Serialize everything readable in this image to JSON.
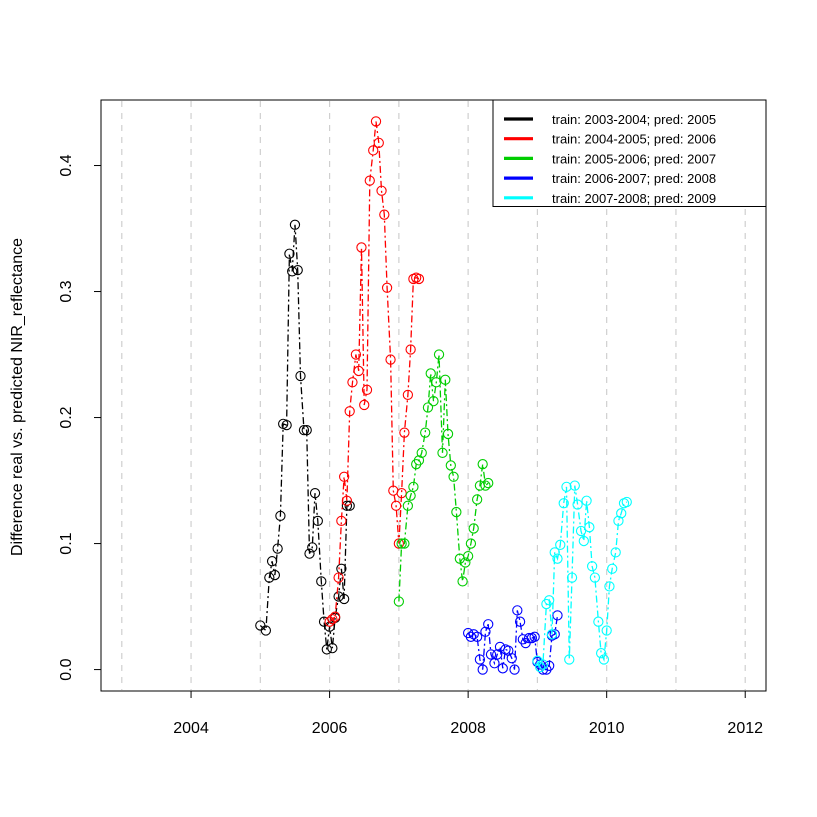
{
  "chart_data": {
    "type": "scatter",
    "title": "",
    "xlabel": "",
    "ylabel": "Difference real vs. predicted NIR_reflectance",
    "xlim": [
      2002.7,
      2012.3
    ],
    "ylim": [
      -0.017,
      0.452
    ],
    "x_ticks": [
      2004,
      2006,
      2008,
      2010,
      2012
    ],
    "y_ticks": [
      0.0,
      0.1,
      0.2,
      0.3,
      0.4
    ],
    "x_tick_labels": [
      "2004",
      "2006",
      "2008",
      "2010",
      "2012"
    ],
    "y_tick_labels": [
      "0.0",
      "0.1",
      "0.2",
      "0.3",
      "0.4"
    ],
    "vertical_gridlines_dashed": [
      2003,
      2004,
      2005,
      2006,
      2007,
      2008,
      2009,
      2010,
      2011,
      2012
    ],
    "legend_position": "top-right",
    "series": [
      {
        "name": "train: 2003-2004; pred: 2005",
        "color": "#000000",
        "x": [
          2005.0,
          2005.08,
          2005.13,
          2005.17,
          2005.21,
          2005.25,
          2005.29,
          2005.33,
          2005.38,
          2005.42,
          2005.46,
          2005.5,
          2005.54,
          2005.58,
          2005.63,
          2005.67,
          2005.71,
          2005.75,
          2005.79,
          2005.83,
          2005.88,
          2005.92,
          2005.96,
          2006.0,
          2006.04,
          2006.08,
          2006.13,
          2006.17,
          2006.21,
          2006.25,
          2006.29
        ],
        "y": [
          0.035,
          0.031,
          0.073,
          0.086,
          0.075,
          0.096,
          0.122,
          0.195,
          0.194,
          0.33,
          0.316,
          0.353,
          0.317,
          0.233,
          0.19,
          0.19,
          0.092,
          0.097,
          0.14,
          0.118,
          0.07,
          0.038,
          0.016,
          0.034,
          0.017,
          0.041,
          0.058,
          0.08,
          0.056,
          0.13,
          0.13
        ]
      },
      {
        "name": "train: 2004-2005; pred: 2006",
        "color": "#ff0000",
        "x": [
          2006.0,
          2006.04,
          2006.08,
          2006.13,
          2006.17,
          2006.21,
          2006.25,
          2006.29,
          2006.33,
          2006.38,
          2006.42,
          2006.46,
          2006.5,
          2006.54,
          2006.58,
          2006.63,
          2006.67,
          2006.71,
          2006.75,
          2006.79,
          2006.83,
          2006.88,
          2006.92,
          2006.96,
          2007.0,
          2007.04,
          2007.08,
          2007.13,
          2007.17,
          2007.21,
          2007.25,
          2007.29
        ],
        "y": [
          0.038,
          0.04,
          0.042,
          0.073,
          0.118,
          0.153,
          0.134,
          0.205,
          0.228,
          0.25,
          0.237,
          0.335,
          0.21,
          0.222,
          0.388,
          0.412,
          0.435,
          0.418,
          0.38,
          0.361,
          0.303,
          0.246,
          0.142,
          0.13,
          0.1,
          0.14,
          0.188,
          0.218,
          0.254,
          0.31,
          0.311,
          0.31
        ]
      },
      {
        "name": "train: 2005-2006; pred: 2007",
        "color": "#00cd00",
        "x": [
          2007.0,
          2007.04,
          2007.08,
          2007.13,
          2007.17,
          2007.21,
          2007.25,
          2007.29,
          2007.33,
          2007.38,
          2007.42,
          2007.46,
          2007.5,
          2007.54,
          2007.58,
          2007.63,
          2007.67,
          2007.71,
          2007.75,
          2007.79,
          2007.83,
          2007.88,
          2007.92,
          2007.96,
          2008.0,
          2008.04,
          2008.08,
          2008.13,
          2008.17,
          2008.21,
          2008.25,
          2008.29
        ],
        "y": [
          0.054,
          0.1,
          0.1,
          0.13,
          0.138,
          0.145,
          0.163,
          0.166,
          0.172,
          0.188,
          0.208,
          0.235,
          0.213,
          0.228,
          0.25,
          0.172,
          0.23,
          0.187,
          0.162,
          0.153,
          0.125,
          0.088,
          0.07,
          0.085,
          0.09,
          0.1,
          0.112,
          0.135,
          0.146,
          0.163,
          0.146,
          0.148
        ]
      },
      {
        "name": "train: 2006-2007; pred: 2008",
        "color": "#0000ff",
        "x": [
          2008.0,
          2008.04,
          2008.08,
          2008.13,
          2008.17,
          2008.21,
          2008.25,
          2008.29,
          2008.33,
          2008.38,
          2008.42,
          2008.46,
          2008.5,
          2008.54,
          2008.58,
          2008.63,
          2008.67,
          2008.71,
          2008.75,
          2008.79,
          2008.83,
          2008.88,
          2008.92,
          2008.96,
          2009.0,
          2009.04,
          2009.08,
          2009.13,
          2009.17,
          2009.21,
          2009.25,
          2009.29
        ],
        "y": [
          0.029,
          0.026,
          0.028,
          0.026,
          0.008,
          0.0,
          0.03,
          0.036,
          0.012,
          0.005,
          0.012,
          0.018,
          0.001,
          0.016,
          0.015,
          0.009,
          0.0,
          0.047,
          0.038,
          0.024,
          0.021,
          0.025,
          0.025,
          0.026,
          0.006,
          0.004,
          0.0,
          0.0,
          0.003,
          0.027,
          0.028,
          0.043
        ]
      },
      {
        "name": "train: 2007-2008; pred: 2009",
        "color": "#00ffff",
        "x": [
          2009.0,
          2009.04,
          2009.08,
          2009.13,
          2009.17,
          2009.21,
          2009.25,
          2009.29,
          2009.33,
          2009.38,
          2009.42,
          2009.46,
          2009.5,
          2009.54,
          2009.58,
          2009.63,
          2009.67,
          2009.71,
          2009.75,
          2009.79,
          2009.83,
          2009.88,
          2009.92,
          2009.96,
          2010.0,
          2010.04,
          2010.08,
          2010.13,
          2010.17,
          2010.21,
          2010.25,
          2010.29
        ],
        "y": [
          0.007,
          0.002,
          0.004,
          0.052,
          0.055,
          0.028,
          0.093,
          0.088,
          0.099,
          0.132,
          0.145,
          0.008,
          0.073,
          0.146,
          0.131,
          0.11,
          0.102,
          0.134,
          0.113,
          0.082,
          0.073,
          0.038,
          0.013,
          0.008,
          0.031,
          0.066,
          0.08,
          0.093,
          0.118,
          0.124,
          0.132,
          0.133
        ]
      }
    ]
  }
}
